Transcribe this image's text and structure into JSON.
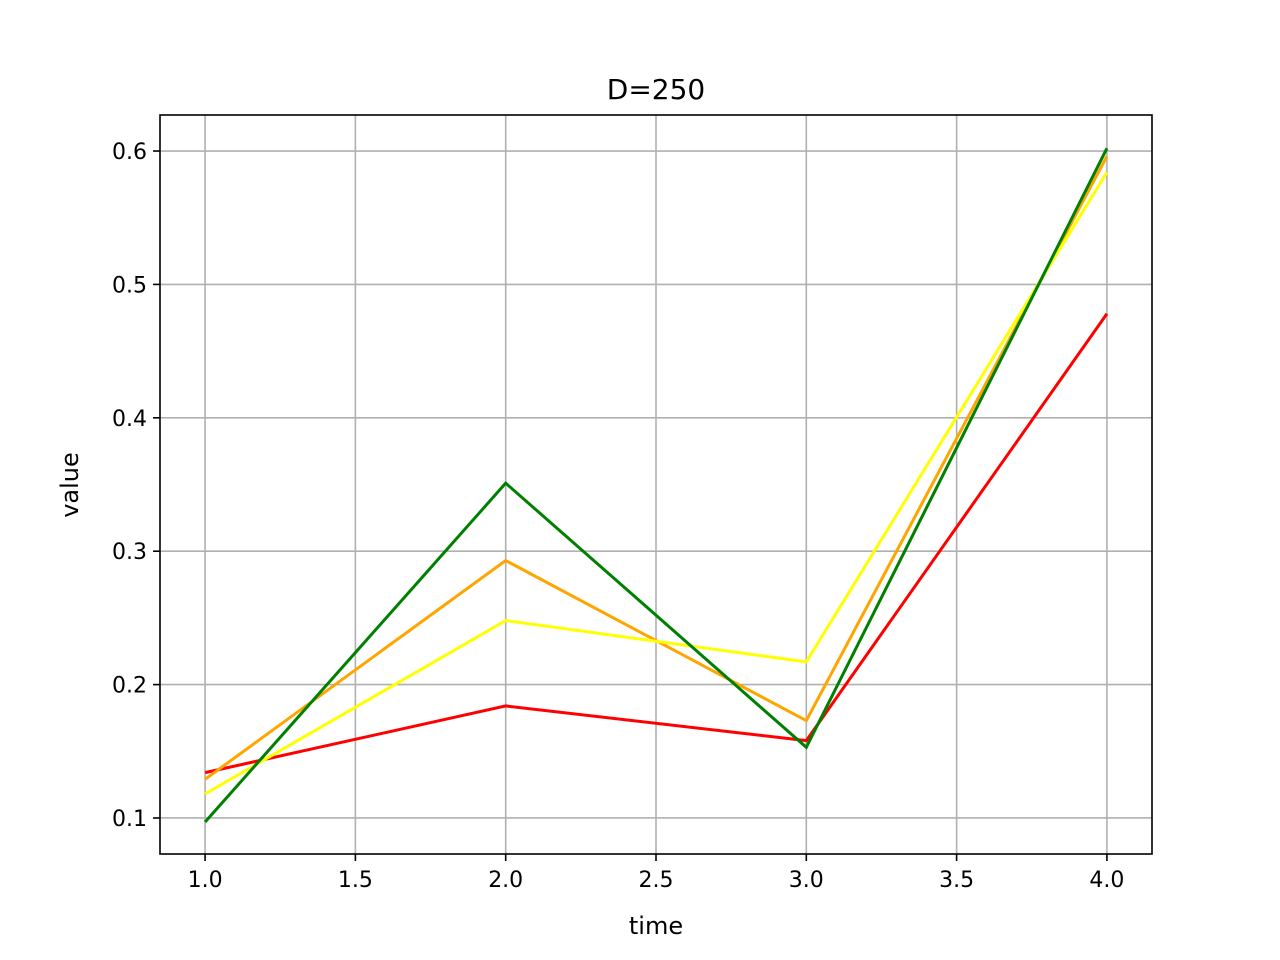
{
  "chart_data": {
    "type": "line",
    "title": "D=250",
    "xlabel": "time",
    "ylabel": "value",
    "x": [
      1.0,
      2.0,
      3.0,
      4.0
    ],
    "xlim": [
      0.85,
      4.15
    ],
    "ylim": [
      0.073,
      0.627
    ],
    "xticks": [
      1.0,
      1.5,
      2.0,
      2.5,
      3.0,
      3.5,
      4.0
    ],
    "xtick_labels": [
      "1.0",
      "1.5",
      "2.0",
      "2.5",
      "3.0",
      "3.5",
      "4.0"
    ],
    "yticks": [
      0.1,
      0.2,
      0.3,
      0.4,
      0.5,
      0.6
    ],
    "ytick_labels": [
      "0.1",
      "0.2",
      "0.3",
      "0.4",
      "0.5",
      "0.6"
    ],
    "grid": true,
    "legend": false,
    "series": [
      {
        "color": "#ff0000",
        "values": [
          0.134,
          0.184,
          0.158,
          0.478
        ]
      },
      {
        "color": "#ffa500",
        "values": [
          0.129,
          0.293,
          0.173,
          0.596
        ]
      },
      {
        "color": "#ffff00",
        "values": [
          0.118,
          0.248,
          0.217,
          0.584
        ]
      },
      {
        "color": "#008000",
        "values": [
          0.097,
          0.351,
          0.153,
          0.602
        ]
      }
    ]
  }
}
